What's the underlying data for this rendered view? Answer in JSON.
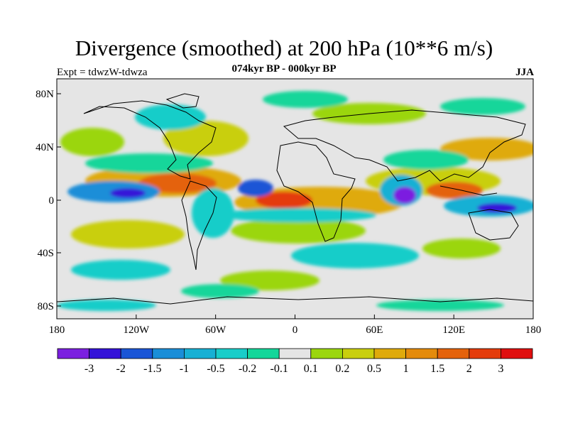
{
  "title": "Divergence (smoothed) at 200 hPa (10**6 m/s)",
  "subtitle": "074kyr BP - 000kyr BP",
  "expt": "Expt = tdwzW-tdwza",
  "season": "JJA",
  "lat_labels": [
    "80N",
    "40N",
    "0",
    "40S",
    "80S"
  ],
  "lon_labels": [
    "180",
    "120W",
    "60W",
    "0",
    "60E",
    "120E",
    "180"
  ],
  "colorbar": {
    "colors": [
      "#7b1fe0",
      "#3412d8",
      "#1a55d6",
      "#1a8ed8",
      "#17b0d4",
      "#19cdc9",
      "#14d69a",
      "#e5e5e5",
      "#9bd60e",
      "#c9cf0e",
      "#dfaa0b",
      "#e48b0b",
      "#e4620b",
      "#e43b0b",
      "#e00e0e"
    ],
    "labels": [
      "-3",
      "-2",
      "-1.5",
      "-1",
      "-0.5",
      "-0.2",
      "-0.1",
      "0.1",
      "0.2",
      "0.5",
      "1",
      "1.5",
      "2",
      "3"
    ]
  }
}
